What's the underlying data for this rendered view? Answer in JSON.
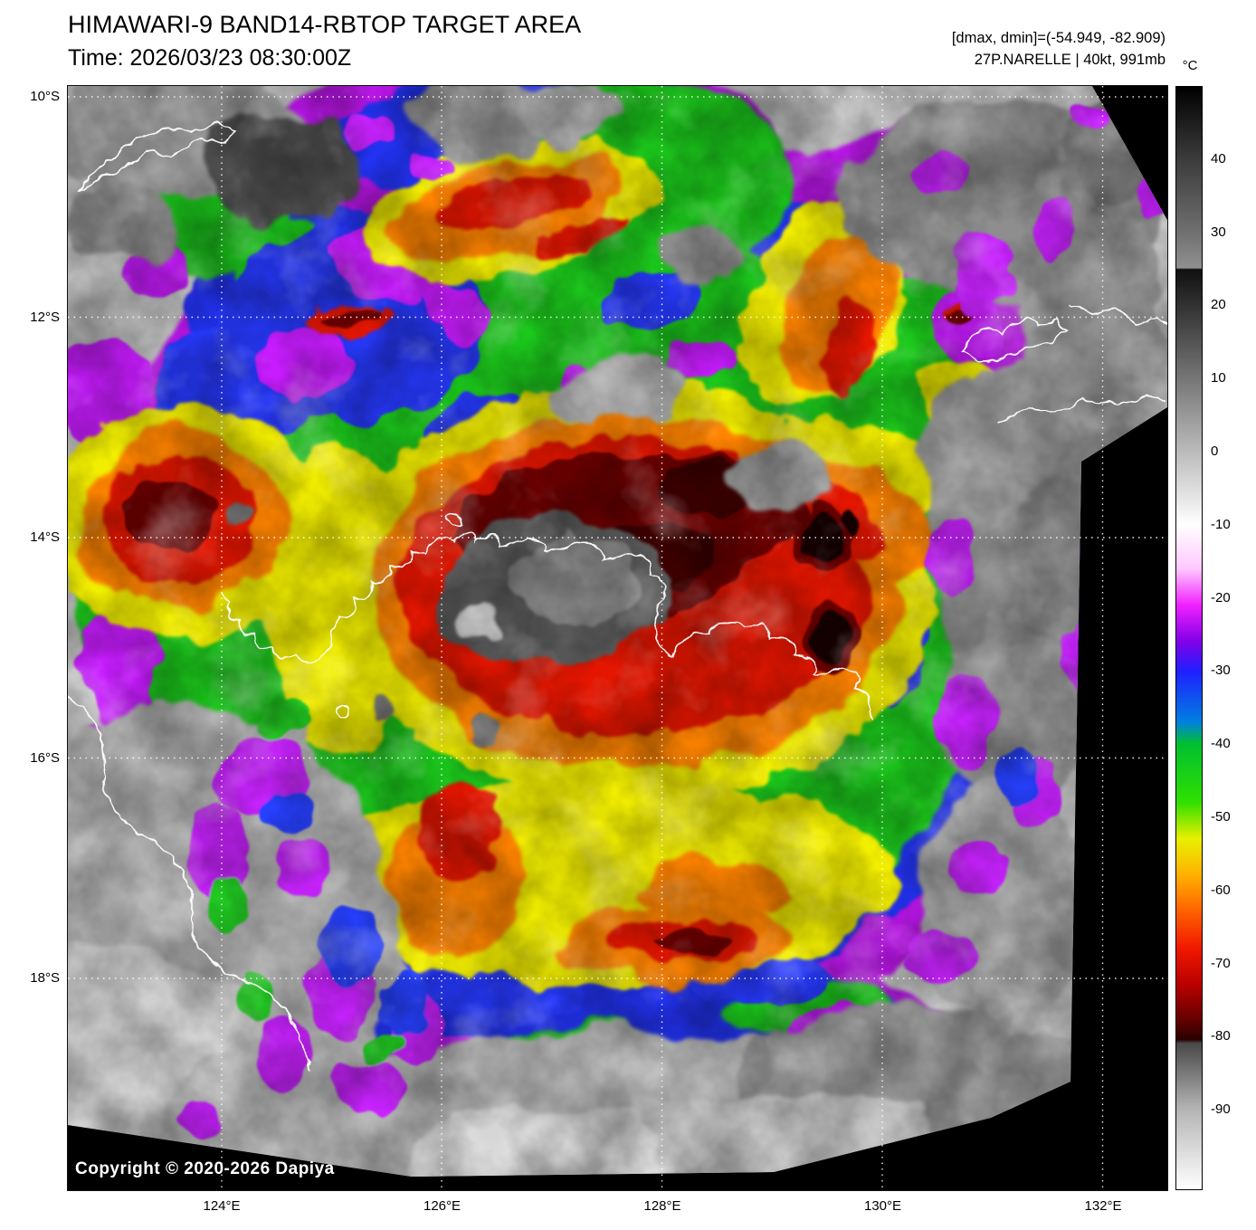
{
  "header": {
    "title": "HIMAWARI-9 BAND14-RBTOP TARGET AREA",
    "time_label": "Time: 2026/03/23 08:30:00Z",
    "range_label": "[dmax, dmin]=(-54.949, -82.909)",
    "storm_label": "27P.NARELLE | 40kt, 991mb"
  },
  "colorbar": {
    "unit_label": "°C",
    "tick_labels": [
      "40",
      "30",
      "20",
      "10",
      "0",
      "-10",
      "-20",
      "-30",
      "-40",
      "-50",
      "-60",
      "-70",
      "-80",
      "-90"
    ],
    "tick_values": [
      40,
      30,
      20,
      10,
      0,
      -10,
      -20,
      -30,
      -40,
      -50,
      -60,
      -70,
      -80,
      -90
    ],
    "scale_top_c": 50,
    "scale_bottom_c": -101,
    "gradient_stops": [
      {
        "t": 50,
        "color": "#000000"
      },
      {
        "t": 40,
        "color": "#3c3c3c"
      },
      {
        "t": 30,
        "color": "#707070"
      },
      {
        "t": 25.2,
        "color": "#909090"
      },
      {
        "t": 25,
        "color": "#101010"
      },
      {
        "t": -10,
        "color": "#ffffff"
      },
      {
        "t": -16,
        "color": "#ffc8ff"
      },
      {
        "t": -21,
        "color": "#f020ff"
      },
      {
        "t": -26,
        "color": "#8000e8"
      },
      {
        "t": -30,
        "color": "#2020ff"
      },
      {
        "t": -37,
        "color": "#0080e0"
      },
      {
        "t": -40,
        "color": "#00c030"
      },
      {
        "t": -48,
        "color": "#30e000"
      },
      {
        "t": -53,
        "color": "#e8f000"
      },
      {
        "t": -58,
        "color": "#ffb000"
      },
      {
        "t": -63,
        "color": "#ff6000"
      },
      {
        "t": -68,
        "color": "#f01800"
      },
      {
        "t": -73,
        "color": "#b80000"
      },
      {
        "t": -78,
        "color": "#600000"
      },
      {
        "t": -80.5,
        "color": "#280000"
      },
      {
        "t": -81,
        "color": "#484848"
      },
      {
        "t": -90,
        "color": "#b4b4b4"
      },
      {
        "t": -101,
        "color": "#ffffff"
      }
    ]
  },
  "axes": {
    "lat_ticks": [
      {
        "label": "10°S",
        "deg": 10
      },
      {
        "label": "12°S",
        "deg": 12
      },
      {
        "label": "14°S",
        "deg": 14
      },
      {
        "label": "16°S",
        "deg": 16
      },
      {
        "label": "18°S",
        "deg": 18
      }
    ],
    "lon_ticks": [
      {
        "label": "124°E",
        "deg": 124
      },
      {
        "label": "126°E",
        "deg": 126
      },
      {
        "label": "128°E",
        "deg": 128
      },
      {
        "label": "130°E",
        "deg": 130
      },
      {
        "label": "132°E",
        "deg": 132
      }
    ]
  },
  "map": {
    "copyright": "Copyright © 2020-2026 Dapiya"
  }
}
